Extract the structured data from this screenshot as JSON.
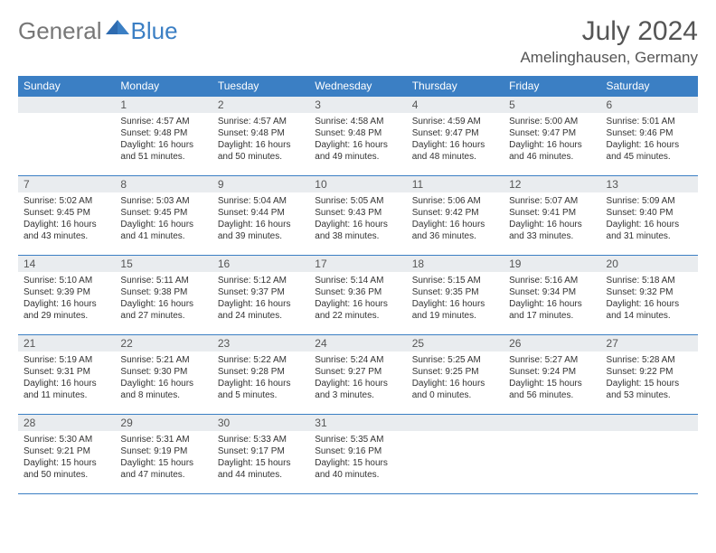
{
  "brand": {
    "part1": "General",
    "part2": "Blue"
  },
  "title": "July 2024",
  "location": "Amelinghausen, Germany",
  "colors": {
    "header_bg": "#3b7fc4",
    "header_text": "#ffffff",
    "daynum_bg": "#e9ecef",
    "border": "#3b7fc4",
    "text": "#333333",
    "title_text": "#555555"
  },
  "weekdays": [
    "Sunday",
    "Monday",
    "Tuesday",
    "Wednesday",
    "Thursday",
    "Friday",
    "Saturday"
  ],
  "grid": {
    "first_weekday_index": 1,
    "days_in_month": 31
  },
  "days": {
    "1": {
      "sunrise": "4:57 AM",
      "sunset": "9:48 PM",
      "daylight": "16 hours and 51 minutes."
    },
    "2": {
      "sunrise": "4:57 AM",
      "sunset": "9:48 PM",
      "daylight": "16 hours and 50 minutes."
    },
    "3": {
      "sunrise": "4:58 AM",
      "sunset": "9:48 PM",
      "daylight": "16 hours and 49 minutes."
    },
    "4": {
      "sunrise": "4:59 AM",
      "sunset": "9:47 PM",
      "daylight": "16 hours and 48 minutes."
    },
    "5": {
      "sunrise": "5:00 AM",
      "sunset": "9:47 PM",
      "daylight": "16 hours and 46 minutes."
    },
    "6": {
      "sunrise": "5:01 AM",
      "sunset": "9:46 PM",
      "daylight": "16 hours and 45 minutes."
    },
    "7": {
      "sunrise": "5:02 AM",
      "sunset": "9:45 PM",
      "daylight": "16 hours and 43 minutes."
    },
    "8": {
      "sunrise": "5:03 AM",
      "sunset": "9:45 PM",
      "daylight": "16 hours and 41 minutes."
    },
    "9": {
      "sunrise": "5:04 AM",
      "sunset": "9:44 PM",
      "daylight": "16 hours and 39 minutes."
    },
    "10": {
      "sunrise": "5:05 AM",
      "sunset": "9:43 PM",
      "daylight": "16 hours and 38 minutes."
    },
    "11": {
      "sunrise": "5:06 AM",
      "sunset": "9:42 PM",
      "daylight": "16 hours and 36 minutes."
    },
    "12": {
      "sunrise": "5:07 AM",
      "sunset": "9:41 PM",
      "daylight": "16 hours and 33 minutes."
    },
    "13": {
      "sunrise": "5:09 AM",
      "sunset": "9:40 PM",
      "daylight": "16 hours and 31 minutes."
    },
    "14": {
      "sunrise": "5:10 AM",
      "sunset": "9:39 PM",
      "daylight": "16 hours and 29 minutes."
    },
    "15": {
      "sunrise": "5:11 AM",
      "sunset": "9:38 PM",
      "daylight": "16 hours and 27 minutes."
    },
    "16": {
      "sunrise": "5:12 AM",
      "sunset": "9:37 PM",
      "daylight": "16 hours and 24 minutes."
    },
    "17": {
      "sunrise": "5:14 AM",
      "sunset": "9:36 PM",
      "daylight": "16 hours and 22 minutes."
    },
    "18": {
      "sunrise": "5:15 AM",
      "sunset": "9:35 PM",
      "daylight": "16 hours and 19 minutes."
    },
    "19": {
      "sunrise": "5:16 AM",
      "sunset": "9:34 PM",
      "daylight": "16 hours and 17 minutes."
    },
    "20": {
      "sunrise": "5:18 AM",
      "sunset": "9:32 PM",
      "daylight": "16 hours and 14 minutes."
    },
    "21": {
      "sunrise": "5:19 AM",
      "sunset": "9:31 PM",
      "daylight": "16 hours and 11 minutes."
    },
    "22": {
      "sunrise": "5:21 AM",
      "sunset": "9:30 PM",
      "daylight": "16 hours and 8 minutes."
    },
    "23": {
      "sunrise": "5:22 AM",
      "sunset": "9:28 PM",
      "daylight": "16 hours and 5 minutes."
    },
    "24": {
      "sunrise": "5:24 AM",
      "sunset": "9:27 PM",
      "daylight": "16 hours and 3 minutes."
    },
    "25": {
      "sunrise": "5:25 AM",
      "sunset": "9:25 PM",
      "daylight": "16 hours and 0 minutes."
    },
    "26": {
      "sunrise": "5:27 AM",
      "sunset": "9:24 PM",
      "daylight": "15 hours and 56 minutes."
    },
    "27": {
      "sunrise": "5:28 AM",
      "sunset": "9:22 PM",
      "daylight": "15 hours and 53 minutes."
    },
    "28": {
      "sunrise": "5:30 AM",
      "sunset": "9:21 PM",
      "daylight": "15 hours and 50 minutes."
    },
    "29": {
      "sunrise": "5:31 AM",
      "sunset": "9:19 PM",
      "daylight": "15 hours and 47 minutes."
    },
    "30": {
      "sunrise": "5:33 AM",
      "sunset": "9:17 PM",
      "daylight": "15 hours and 44 minutes."
    },
    "31": {
      "sunrise": "5:35 AM",
      "sunset": "9:16 PM",
      "daylight": "15 hours and 40 minutes."
    }
  },
  "labels": {
    "sunrise": "Sunrise:",
    "sunset": "Sunset:",
    "daylight": "Daylight:"
  }
}
